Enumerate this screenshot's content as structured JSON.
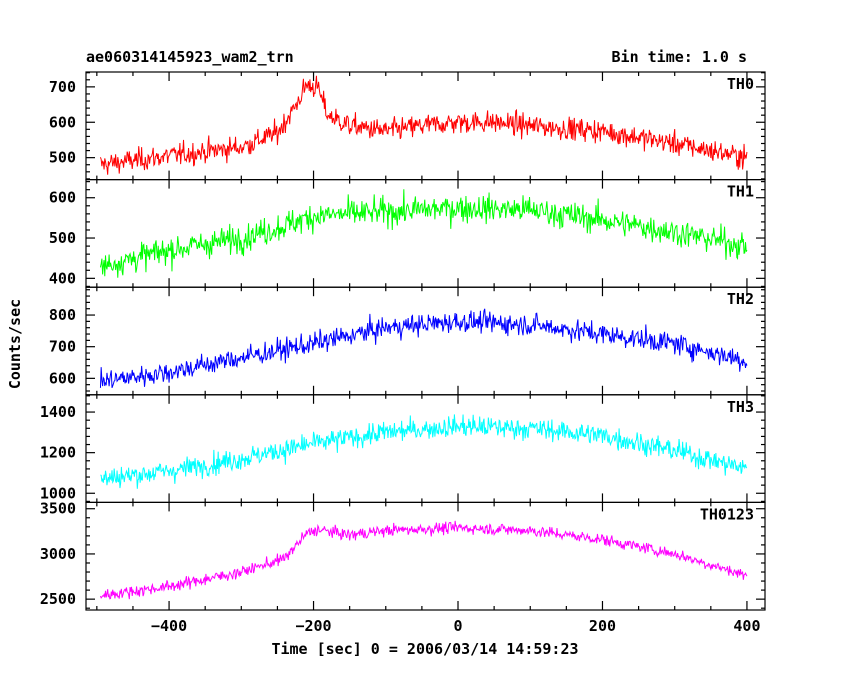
{
  "chart_data": {
    "type": "line",
    "title": "ae060314145923_wam2_trn",
    "subtitle": "Bin time: 1.0 s",
    "xlabel": "Time [sec] 0 = 2006/03/14 14:59:23",
    "ylabel": "Counts/sec",
    "xlim": [
      -515,
      425
    ],
    "xticks": [
      -400,
      -200,
      0,
      200,
      400
    ],
    "x_sampling": {
      "start": -495,
      "end": 400,
      "step": 1
    },
    "grid": false,
    "legend": "none",
    "panels": [
      {
        "name": "TH0",
        "color": "#ff0000",
        "ylim": [
          438,
          742
        ],
        "yticks": [
          500,
          600,
          700
        ],
        "noise": 30,
        "profile": [
          [
            -495,
            480
          ],
          [
            -400,
            505
          ],
          [
            -300,
            530
          ],
          [
            -250,
            570
          ],
          [
            -225,
            645
          ],
          [
            -210,
            705
          ],
          [
            -195,
            700
          ],
          [
            -180,
            620
          ],
          [
            -150,
            590
          ],
          [
            -100,
            575
          ],
          [
            -50,
            590
          ],
          [
            0,
            600
          ],
          [
            50,
            600
          ],
          [
            100,
            590
          ],
          [
            200,
            575
          ],
          [
            300,
            540
          ],
          [
            400,
            500
          ]
        ]
      },
      {
        "name": "TH1",
        "color": "#00ff00",
        "ylim": [
          378,
          645
        ],
        "yticks": [
          400,
          500,
          600
        ],
        "noise": 32,
        "profile": [
          [
            -495,
            430
          ],
          [
            -400,
            470
          ],
          [
            -300,
            500
          ],
          [
            -250,
            525
          ],
          [
            -200,
            555
          ],
          [
            -100,
            565
          ],
          [
            0,
            575
          ],
          [
            100,
            570
          ],
          [
            200,
            545
          ],
          [
            300,
            515
          ],
          [
            400,
            480
          ]
        ]
      },
      {
        "name": "TH2",
        "color": "#0000ff",
        "ylim": [
          548,
          888
        ],
        "yticks": [
          600,
          700,
          800
        ],
        "noise": 32,
        "profile": [
          [
            -495,
            590
          ],
          [
            -400,
            620
          ],
          [
            -300,
            665
          ],
          [
            -200,
            710
          ],
          [
            -100,
            760
          ],
          [
            0,
            780
          ],
          [
            100,
            770
          ],
          [
            200,
            740
          ],
          [
            300,
            710
          ],
          [
            400,
            655
          ]
        ]
      },
      {
        "name": "TH3",
        "color": "#00ffff",
        "ylim": [
          955,
          1485
        ],
        "yticks": [
          1000,
          1200,
          1400
        ],
        "noise": 50,
        "profile": [
          [
            -495,
            1070
          ],
          [
            -400,
            1110
          ],
          [
            -300,
            1170
          ],
          [
            -200,
            1245
          ],
          [
            -100,
            1300
          ],
          [
            0,
            1330
          ],
          [
            100,
            1320
          ],
          [
            200,
            1285
          ],
          [
            300,
            1210
          ],
          [
            400,
            1120
          ]
        ]
      },
      {
        "name": "TH0123",
        "color": "#ff00ff",
        "ylim": [
          2380,
          3570
        ],
        "yticks": [
          2500,
          3000,
          3500
        ],
        "noise": 60,
        "profile": [
          [
            -495,
            2540
          ],
          [
            -400,
            2640
          ],
          [
            -300,
            2800
          ],
          [
            -240,
            2950
          ],
          [
            -210,
            3220
          ],
          [
            -195,
            3270
          ],
          [
            -150,
            3210
          ],
          [
            -100,
            3260
          ],
          [
            0,
            3290
          ],
          [
            100,
            3260
          ],
          [
            200,
            3160
          ],
          [
            300,
            3000
          ],
          [
            400,
            2760
          ]
        ]
      }
    ]
  }
}
